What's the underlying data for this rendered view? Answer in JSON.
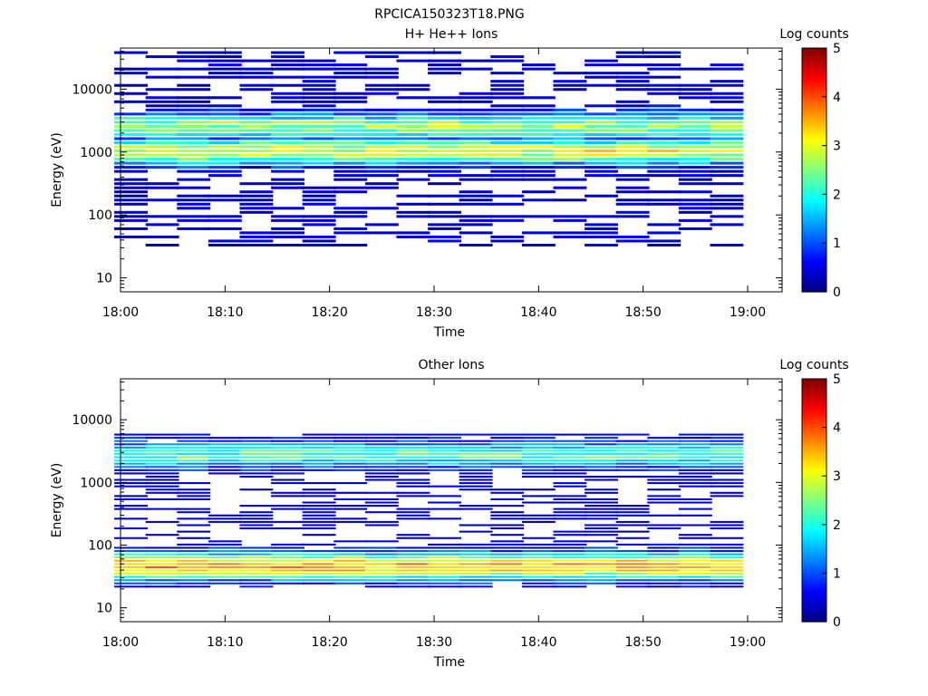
{
  "figure_title": "RPCICA150323T18.PNG",
  "chart_data": [
    {
      "type": "heatmap",
      "title": "H+ He++ Ions",
      "xlabel": "Time",
      "ylabel": "Energy (eV)",
      "x_ticks": [
        "18:00",
        "18:10",
        "18:20",
        "18:30",
        "18:40",
        "18:50",
        "19:00"
      ],
      "y_ticks": [
        "10",
        "100",
        "1000",
        "10000"
      ],
      "y_scale": "log",
      "ylim": [
        6,
        45000
      ],
      "colorbar_label": "Log counts",
      "colorbar_ticks": [
        "0",
        "1",
        "2",
        "3",
        "4",
        "5"
      ],
      "colorbar_range": [
        0,
        5
      ],
      "colormap": "jet",
      "time_bins": [
        "18:01",
        "18:04",
        "18:07",
        "18:10",
        "18:13",
        "18:16",
        "18:19",
        "18:22",
        "18:25",
        "18:28",
        "18:31",
        "18:34",
        "18:37",
        "18:40",
        "18:43",
        "18:46",
        "18:49",
        "18:52",
        "18:55",
        "18:58"
      ],
      "profile_peak_energy_ev": [
        2500,
        1000
      ],
      "profile_peak_log_counts": [
        2.6,
        3.0
      ],
      "energy_range_ev": [
        30,
        40000
      ],
      "grid": false
    },
    {
      "type": "heatmap",
      "title": "Other Ions",
      "xlabel": "Time",
      "ylabel": "Energy (eV)",
      "x_ticks": [
        "18:00",
        "18:10",
        "18:20",
        "18:30",
        "18:40",
        "18:50",
        "19:00"
      ],
      "y_ticks": [
        "10",
        "100",
        "1000",
        "10000"
      ],
      "y_scale": "log",
      "ylim": [
        6,
        45000
      ],
      "colorbar_label": "Log counts",
      "colorbar_ticks": [
        "0",
        "1",
        "2",
        "3",
        "4",
        "5"
      ],
      "colorbar_range": [
        0,
        5
      ],
      "colormap": "jet",
      "time_bins": [
        "18:01",
        "18:04",
        "18:07",
        "18:10",
        "18:13",
        "18:16",
        "18:19",
        "18:22",
        "18:25",
        "18:28",
        "18:31",
        "18:34",
        "18:37",
        "18:40",
        "18:43",
        "18:46",
        "18:49",
        "18:52",
        "18:55",
        "18:58"
      ],
      "profile_peak_energy_ev": [
        2700,
        45
      ],
      "profile_peak_log_counts": [
        2.2,
        3.6
      ],
      "energy_range_ev": [
        20,
        6000
      ],
      "grid": false
    }
  ]
}
